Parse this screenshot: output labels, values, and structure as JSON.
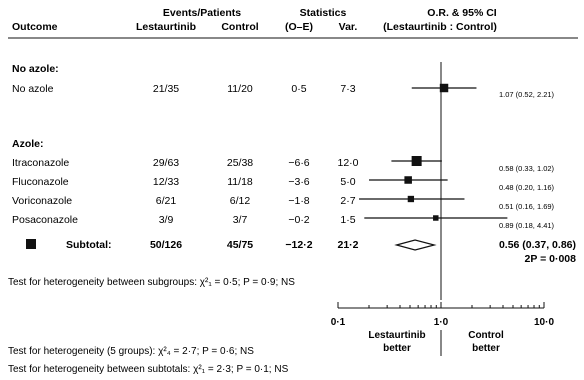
{
  "header": {
    "outcome": "Outcome",
    "events_group": "Events/Patients",
    "arm1": "Lestaurtinib",
    "arm2": "Control",
    "stats_group": "Statistics",
    "oe": "(O–E)",
    "var": "Var.",
    "or_title": "O.R. & 95% CI",
    "or_sub": "(Lestaurtinib : Control)"
  },
  "sections": [
    {
      "heading": "No azole:",
      "rows": [
        {
          "label": "No azole",
          "arm1": "21/35",
          "arm2": "11/20",
          "oe": "0·5",
          "var": "7·3",
          "ci_text": "1.07 (0.52, 2.21)"
        }
      ]
    },
    {
      "heading": "Azole:",
      "rows": [
        {
          "label": "Itraconazole",
          "arm1": "29/63",
          "arm2": "25/38",
          "oe": "−6·6",
          "var": "12·0",
          "ci_text": "0.58 (0.33, 1.02)"
        },
        {
          "label": "Fluconazole",
          "arm1": "12/33",
          "arm2": "11/18",
          "oe": "−3·6",
          "var": "5·0",
          "ci_text": "0.48 (0.20, 1.16)"
        },
        {
          "label": "Voriconazole",
          "arm1": "6/21",
          "arm2": "6/12",
          "oe": "−1·8",
          "var": "2·7",
          "ci_text": "0.51 (0.16, 1.69)"
        },
        {
          "label": "Posaconazole",
          "arm1": "3/9",
          "arm2": "3/7",
          "oe": "−0·2",
          "var": "1·5",
          "ci_text": "0.89 (0.18, 4.41)"
        }
      ]
    }
  ],
  "subtotal": {
    "label": "Subtotal:",
    "arm1": "50/126",
    "arm2": "45/75",
    "oe": "−12·2",
    "var": "21·2",
    "ci_text": "0.56 (0.37, 0.86)",
    "p_text": "2P = 0·008"
  },
  "footnotes": {
    "subgroups": "Test for heterogeneity between subgroups: χ²₁ = 0·5; P = 0·9; NS",
    "five_groups": "Test for heterogeneity (5 groups): χ²₄ = 2·7; P = 0·6; NS",
    "subtotals": "Test for heterogeneity between subtotals: χ²₁ = 2·3; P = 0·1; NS"
  },
  "axis": {
    "tick_labels": [
      "0·1",
      "1·0",
      "10·0"
    ],
    "left_label": [
      "Lestaurtinib",
      "better"
    ],
    "right_label": [
      "Control",
      "better"
    ]
  },
  "chart_data": {
    "type": "forest",
    "x_scale": "log",
    "xlim": [
      0.1,
      10
    ],
    "reference_line": 1.0,
    "points": [
      {
        "name": "No azole",
        "or": 1.07,
        "lo": 0.52,
        "hi": 2.21,
        "var": 7.3
      },
      {
        "name": "Itraconazole",
        "or": 0.58,
        "lo": 0.33,
        "hi": 1.02,
        "var": 12.0
      },
      {
        "name": "Fluconazole",
        "or": 0.48,
        "lo": 0.2,
        "hi": 1.16,
        "var": 5.0
      },
      {
        "name": "Voriconazole",
        "or": 0.51,
        "lo": 0.16,
        "hi": 1.69,
        "var": 2.7
      },
      {
        "name": "Posaconazole",
        "or": 0.89,
        "lo": 0.18,
        "hi": 4.41,
        "var": 1.5
      }
    ],
    "subtotal": {
      "name": "Subtotal",
      "or": 0.56,
      "lo": 0.37,
      "hi": 0.86
    }
  }
}
